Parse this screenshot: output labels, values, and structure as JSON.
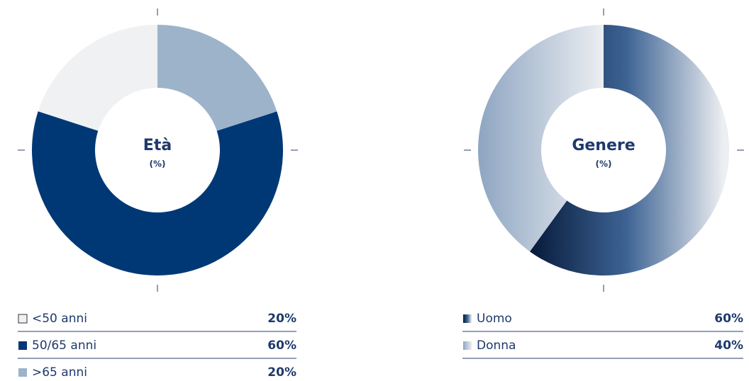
{
  "chart_data": [
    {
      "type": "donut",
      "title": "Età",
      "subtitle": "(%)",
      "direction": "counterclockwise",
      "categories": [
        "<50 anni",
        "50/65 anni",
        ">65 anni"
      ],
      "values": [
        20,
        60,
        20
      ],
      "value_labels": [
        "20%",
        "60%",
        "20%"
      ],
      "colors": [
        "#f0f1f3",
        "#003876",
        "#9db3ca"
      ]
    },
    {
      "type": "donut",
      "title": "Genere",
      "subtitle": "(%)",
      "direction": "clockwise",
      "categories": [
        "Uomo",
        "Donna"
      ],
      "values": [
        60,
        40
      ],
      "value_labels": [
        "60%",
        "40%"
      ],
      "colors": [
        [
          "#061a3a",
          "#3d6394",
          "#eceef1"
        ],
        [
          "#8ea6c2",
          "#eceef1"
        ]
      ]
    }
  ]
}
